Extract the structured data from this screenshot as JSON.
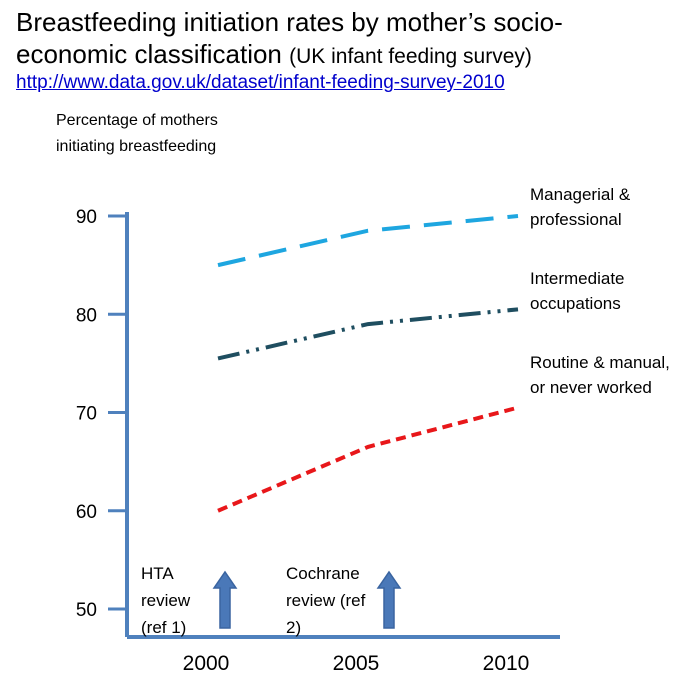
{
  "header": {
    "title_main": "Breastfeeding initiation rates by mother’s socio-economic classification",
    "title_sub": "(UK infant feeding survey)",
    "link": "http://www.data.gov.uk/dataset/infant-feeding-survey-2010"
  },
  "annotations": {
    "hta": "HTA review (ref 1)",
    "cochrane": "Cochrane review (ref 2)"
  },
  "colors": {
    "axis": "#4f81bd",
    "arrow": "#4a78b8",
    "managerial": "#1ea6e0",
    "intermediate": "#1f4e60",
    "routine": "#e8171a"
  },
  "chart_data": {
    "type": "line",
    "title": "Breastfeeding initiation rates by mother’s socio-economic classification (UK infant feeding survey)",
    "ylabel": "Percentage of mothers initiating breastfeeding",
    "xlabel": "",
    "x": [
      2000,
      2005,
      2010
    ],
    "x_tick_labels": [
      "2000",
      "2005",
      "2010"
    ],
    "y_ticks": [
      50,
      60,
      70,
      80,
      90
    ],
    "ylim": [
      48,
      92
    ],
    "grid": false,
    "legend": "inline labels at line ends (right)",
    "series": [
      {
        "name": "Managerial & professional",
        "values": [
          85,
          88.5,
          90
        ],
        "style": "long-dash"
      },
      {
        "name": "Intermediate occupations",
        "values": [
          75.5,
          79,
          80.5
        ],
        "style": "dash-dot-dot"
      },
      {
        "name": "Routine & manual, or never worked",
        "values": [
          60,
          66.5,
          70.5
        ],
        "style": "short-dash"
      }
    ]
  }
}
